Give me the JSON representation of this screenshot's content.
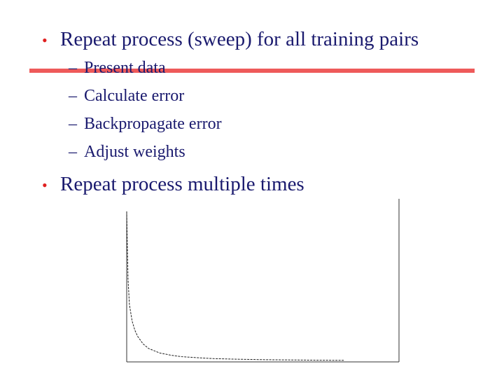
{
  "slide": {
    "bullet_symbol": "•",
    "dash_symbol": "–",
    "bullet1": "Repeat process (sweep) for all training pairs",
    "sub_items": [
      "Present data",
      "Calculate error",
      "Backpropagate error",
      "Adjust weights"
    ],
    "bullet2": "Repeat process multiple times",
    "colors": {
      "text": "#1a1a6e",
      "bullet": "#e02020",
      "rule": "#ee5a5a"
    }
  },
  "chart_data": {
    "type": "line",
    "title": "",
    "xlabel": "",
    "ylabel": "",
    "xlim": [
      0,
      5000
    ],
    "ylim": [
      0,
      1
    ],
    "grid": false,
    "series": [
      {
        "x": [
          0,
          10,
          25,
          50,
          100,
          150,
          200,
          300,
          400,
          600,
          800,
          1000,
          1300,
          1600,
          2000,
          2500,
          3000,
          3500,
          4000
        ],
        "y": [
          1.0,
          0.8,
          0.55,
          0.38,
          0.27,
          0.21,
          0.17,
          0.12,
          0.09,
          0.06,
          0.045,
          0.035,
          0.028,
          0.022,
          0.018,
          0.015,
          0.013,
          0.011,
          0.01
        ]
      }
    ]
  }
}
